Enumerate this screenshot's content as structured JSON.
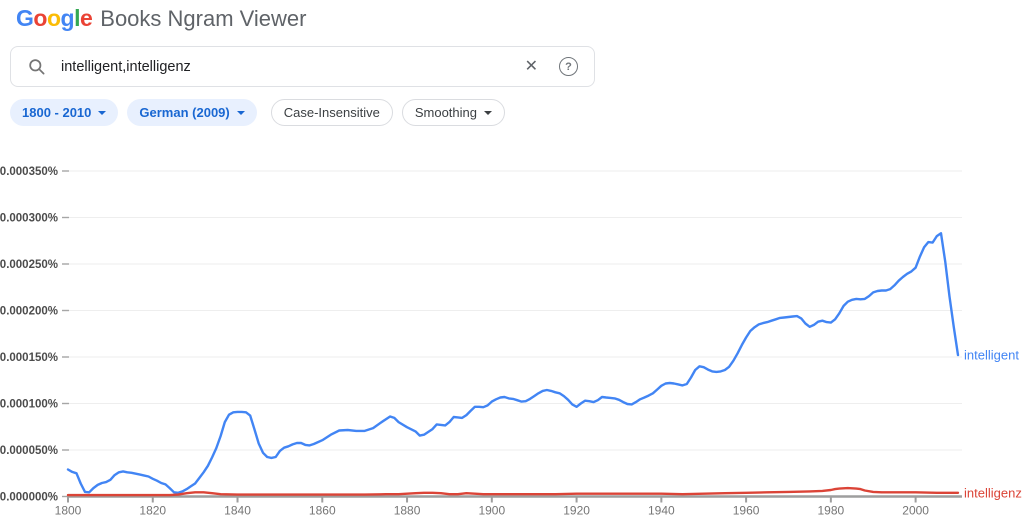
{
  "header": {
    "logo_letters": [
      {
        "char": "G",
        "color": "#4285F4"
      },
      {
        "char": "o",
        "color": "#EA4335"
      },
      {
        "char": "o",
        "color": "#FBBC05"
      },
      {
        "char": "g",
        "color": "#4285F4"
      },
      {
        "char": "l",
        "color": "#34A853"
      },
      {
        "char": "e",
        "color": "#EA4335"
      }
    ],
    "title": "Books Ngram Viewer"
  },
  "search": {
    "value": "intelligent,intelligenz",
    "clear_icon": "✕",
    "help_icon": "?"
  },
  "filters": [
    {
      "label": "1800 - 2010",
      "dropdown": true,
      "style": "blue"
    },
    {
      "label": "German (2009)",
      "dropdown": true,
      "style": "blue"
    },
    {
      "label": "Case-Insensitive",
      "dropdown": false,
      "style": "outline"
    },
    {
      "label": "Smoothing",
      "dropdown": true,
      "style": "outline"
    }
  ],
  "chart_data": {
    "type": "line",
    "title": "",
    "xlabel": "",
    "ylabel": "",
    "grid": true,
    "x_unit": "year",
    "y_unit": "1e-6 percent (frequency % multiplied by 1,000,000)",
    "xlim": [
      1800,
      2010
    ],
    "ylim": [
      0,
      350
    ],
    "x_ticks": [
      1800,
      1820,
      1840,
      1860,
      1880,
      1900,
      1920,
      1940,
      1960,
      1980,
      2000
    ],
    "y_ticks": [
      {
        "value": 0,
        "label": "0.000000%"
      },
      {
        "value": 50,
        "label": "0.000050%"
      },
      {
        "value": 100,
        "label": "0.000100%"
      },
      {
        "value": 150,
        "label": "0.000150%"
      },
      {
        "value": 200,
        "label": "0.000200%"
      },
      {
        "value": 250,
        "label": "0.000250%"
      },
      {
        "value": 300,
        "label": "0.000300%"
      },
      {
        "value": 350,
        "label": "0.000350%"
      }
    ],
    "series": [
      {
        "name": "intelligent",
        "color": "#4285f4",
        "points": [
          [
            1800,
            29
          ],
          [
            1801,
            26.5
          ],
          [
            1802,
            25
          ],
          [
            1803,
            14
          ],
          [
            1804,
            5
          ],
          [
            1805,
            4.5
          ],
          [
            1806,
            9
          ],
          [
            1807,
            12.5
          ],
          [
            1808,
            14.5
          ],
          [
            1809,
            15.5
          ],
          [
            1810,
            18
          ],
          [
            1811,
            23
          ],
          [
            1812,
            26
          ],
          [
            1813,
            27
          ],
          [
            1814,
            26
          ],
          [
            1815,
            25.5
          ],
          [
            1816,
            24.5
          ],
          [
            1817,
            23.5
          ],
          [
            1818,
            22.5
          ],
          [
            1819,
            21.5
          ],
          [
            1820,
            19
          ],
          [
            1821,
            17
          ],
          [
            1822,
            14.5
          ],
          [
            1823,
            13
          ],
          [
            1824,
            9
          ],
          [
            1825,
            4.5
          ],
          [
            1826,
            4
          ],
          [
            1827,
            5.5
          ],
          [
            1828,
            8
          ],
          [
            1829,
            11
          ],
          [
            1830,
            14
          ],
          [
            1831,
            20
          ],
          [
            1832,
            26
          ],
          [
            1833,
            33
          ],
          [
            1834,
            42
          ],
          [
            1835,
            52
          ],
          [
            1836,
            65
          ],
          [
            1837,
            80
          ],
          [
            1838,
            88
          ],
          [
            1839,
            90.5
          ],
          [
            1840,
            91
          ],
          [
            1841,
            91
          ],
          [
            1842,
            90.5
          ],
          [
            1843,
            87
          ],
          [
            1844,
            72
          ],
          [
            1845,
            57
          ],
          [
            1846,
            47
          ],
          [
            1847,
            42.5
          ],
          [
            1848,
            41.5
          ],
          [
            1849,
            42.5
          ],
          [
            1850,
            49
          ],
          [
            1851,
            52.5
          ],
          [
            1852,
            54
          ],
          [
            1853,
            56
          ],
          [
            1854,
            57.5
          ],
          [
            1855,
            57.5
          ],
          [
            1856,
            55.5
          ],
          [
            1857,
            55
          ],
          [
            1858,
            56.5
          ],
          [
            1859,
            58.5
          ],
          [
            1860,
            60.5
          ],
          [
            1862,
            66.5
          ],
          [
            1864,
            71
          ],
          [
            1866,
            71.5
          ],
          [
            1868,
            70.5
          ],
          [
            1870,
            70.5
          ],
          [
            1872,
            73.5
          ],
          [
            1874,
            80
          ],
          [
            1876,
            86
          ],
          [
            1877,
            84.5
          ],
          [
            1878,
            80
          ],
          [
            1880,
            74.5
          ],
          [
            1882,
            70
          ],
          [
            1883,
            65.5
          ],
          [
            1884,
            66.5
          ],
          [
            1886,
            72.5
          ],
          [
            1887,
            77.5
          ],
          [
            1888,
            77
          ],
          [
            1889,
            76.5
          ],
          [
            1890,
            80
          ],
          [
            1891,
            85.5
          ],
          [
            1892,
            85
          ],
          [
            1893,
            84.5
          ],
          [
            1894,
            87.5
          ],
          [
            1895,
            92
          ],
          [
            1896,
            96.5
          ],
          [
            1897,
            96.5
          ],
          [
            1898,
            96
          ],
          [
            1899,
            98
          ],
          [
            1900,
            102
          ],
          [
            1901,
            104.5
          ],
          [
            1902,
            106.5
          ],
          [
            1903,
            107
          ],
          [
            1904,
            105.5
          ],
          [
            1905,
            105
          ],
          [
            1906,
            103.5
          ],
          [
            1907,
            102
          ],
          [
            1908,
            102.5
          ],
          [
            1909,
            105
          ],
          [
            1910,
            108
          ],
          [
            1911,
            111
          ],
          [
            1912,
            113.5
          ],
          [
            1913,
            114.5
          ],
          [
            1914,
            113.5
          ],
          [
            1915,
            112
          ],
          [
            1916,
            111
          ],
          [
            1917,
            108
          ],
          [
            1918,
            104
          ],
          [
            1919,
            99
          ],
          [
            1920,
            96.5
          ],
          [
            1921,
            100
          ],
          [
            1922,
            103
          ],
          [
            1923,
            102.5
          ],
          [
            1924,
            101.5
          ],
          [
            1925,
            103.5
          ],
          [
            1926,
            107
          ],
          [
            1927,
            106.5
          ],
          [
            1928,
            106
          ],
          [
            1929,
            105.5
          ],
          [
            1930,
            104
          ],
          [
            1931,
            101.5
          ],
          [
            1932,
            99.5
          ],
          [
            1933,
            99
          ],
          [
            1934,
            101.5
          ],
          [
            1935,
            104.5
          ],
          [
            1936,
            106.5
          ],
          [
            1937,
            108.5
          ],
          [
            1938,
            111
          ],
          [
            1939,
            115
          ],
          [
            1940,
            119
          ],
          [
            1941,
            121.5
          ],
          [
            1942,
            122
          ],
          [
            1943,
            121.5
          ],
          [
            1944,
            120.5
          ],
          [
            1945,
            119.5
          ],
          [
            1946,
            121
          ],
          [
            1947,
            128
          ],
          [
            1948,
            136
          ],
          [
            1949,
            140
          ],
          [
            1950,
            139
          ],
          [
            1951,
            136.5
          ],
          [
            1952,
            134.5
          ],
          [
            1953,
            134
          ],
          [
            1954,
            134.5
          ],
          [
            1955,
            136
          ],
          [
            1956,
            139.5
          ],
          [
            1957,
            146
          ],
          [
            1958,
            154
          ],
          [
            1959,
            163
          ],
          [
            1960,
            171
          ],
          [
            1961,
            178
          ],
          [
            1962,
            182
          ],
          [
            1963,
            185
          ],
          [
            1964,
            186.5
          ],
          [
            1965,
            187.5
          ],
          [
            1966,
            189
          ],
          [
            1967,
            190.5
          ],
          [
            1968,
            192
          ],
          [
            1969,
            192.5
          ],
          [
            1970,
            193
          ],
          [
            1971,
            193.5
          ],
          [
            1972,
            194
          ],
          [
            1973,
            191.5
          ],
          [
            1974,
            186
          ],
          [
            1975,
            182.5
          ],
          [
            1976,
            184.5
          ],
          [
            1977,
            188
          ],
          [
            1978,
            189
          ],
          [
            1979,
            187.5
          ],
          [
            1980,
            187
          ],
          [
            1981,
            190.5
          ],
          [
            1982,
            197
          ],
          [
            1983,
            205
          ],
          [
            1984,
            209.5
          ],
          [
            1985,
            211.5
          ],
          [
            1986,
            212.5
          ],
          [
            1987,
            212
          ],
          [
            1988,
            212.5
          ],
          [
            1989,
            215.5
          ],
          [
            1990,
            219.5
          ],
          [
            1991,
            221
          ],
          [
            1992,
            221.5
          ],
          [
            1993,
            221.5
          ],
          [
            1994,
            223
          ],
          [
            1995,
            227
          ],
          [
            1996,
            232
          ],
          [
            1997,
            236
          ],
          [
            1998,
            239.5
          ],
          [
            1999,
            242
          ],
          [
            2000,
            246
          ],
          [
            2001,
            258
          ],
          [
            2002,
            268
          ],
          [
            2003,
            273.5
          ],
          [
            2004,
            273
          ],
          [
            2005,
            280
          ],
          [
            2006,
            283
          ],
          [
            2007,
            252
          ],
          [
            2008,
            215
          ],
          [
            2009,
            182
          ],
          [
            2010,
            152
          ]
        ]
      },
      {
        "name": "intelligenz",
        "color": "#db4437",
        "points": [
          [
            1800,
            1.5
          ],
          [
            1805,
            1.5
          ],
          [
            1810,
            1.5
          ],
          [
            1815,
            1.5
          ],
          [
            1820,
            1.5
          ],
          [
            1824,
            1.5
          ],
          [
            1826,
            2
          ],
          [
            1828,
            3.5
          ],
          [
            1830,
            4.5
          ],
          [
            1832,
            4.5
          ],
          [
            1834,
            3.5
          ],
          [
            1836,
            2.5
          ],
          [
            1840,
            2
          ],
          [
            1845,
            2
          ],
          [
            1850,
            2
          ],
          [
            1855,
            2
          ],
          [
            1860,
            2
          ],
          [
            1865,
            2
          ],
          [
            1870,
            2
          ],
          [
            1875,
            2.5
          ],
          [
            1878,
            2.5
          ],
          [
            1880,
            3
          ],
          [
            1882,
            3.5
          ],
          [
            1884,
            4
          ],
          [
            1886,
            4
          ],
          [
            1888,
            3.5
          ],
          [
            1890,
            2.5
          ],
          [
            1892,
            2.5
          ],
          [
            1894,
            3.5
          ],
          [
            1896,
            3
          ],
          [
            1898,
            2.5
          ],
          [
            1900,
            2.5
          ],
          [
            1905,
            2.5
          ],
          [
            1910,
            2.5
          ],
          [
            1915,
            2.5
          ],
          [
            1920,
            3
          ],
          [
            1925,
            3
          ],
          [
            1930,
            3
          ],
          [
            1935,
            3
          ],
          [
            1940,
            3
          ],
          [
            1945,
            2.5
          ],
          [
            1950,
            3
          ],
          [
            1955,
            3.5
          ],
          [
            1960,
            4
          ],
          [
            1965,
            4.5
          ],
          [
            1970,
            5
          ],
          [
            1975,
            5.5
          ],
          [
            1978,
            6
          ],
          [
            1980,
            7
          ],
          [
            1981,
            8
          ],
          [
            1982,
            8.5
          ],
          [
            1984,
            9
          ],
          [
            1986,
            8.5
          ],
          [
            1987,
            8
          ],
          [
            1988,
            6.5
          ],
          [
            1990,
            5
          ],
          [
            1992,
            4.5
          ],
          [
            1995,
            4.5
          ],
          [
            2000,
            4.5
          ],
          [
            2005,
            4
          ],
          [
            2010,
            4
          ]
        ]
      }
    ]
  }
}
